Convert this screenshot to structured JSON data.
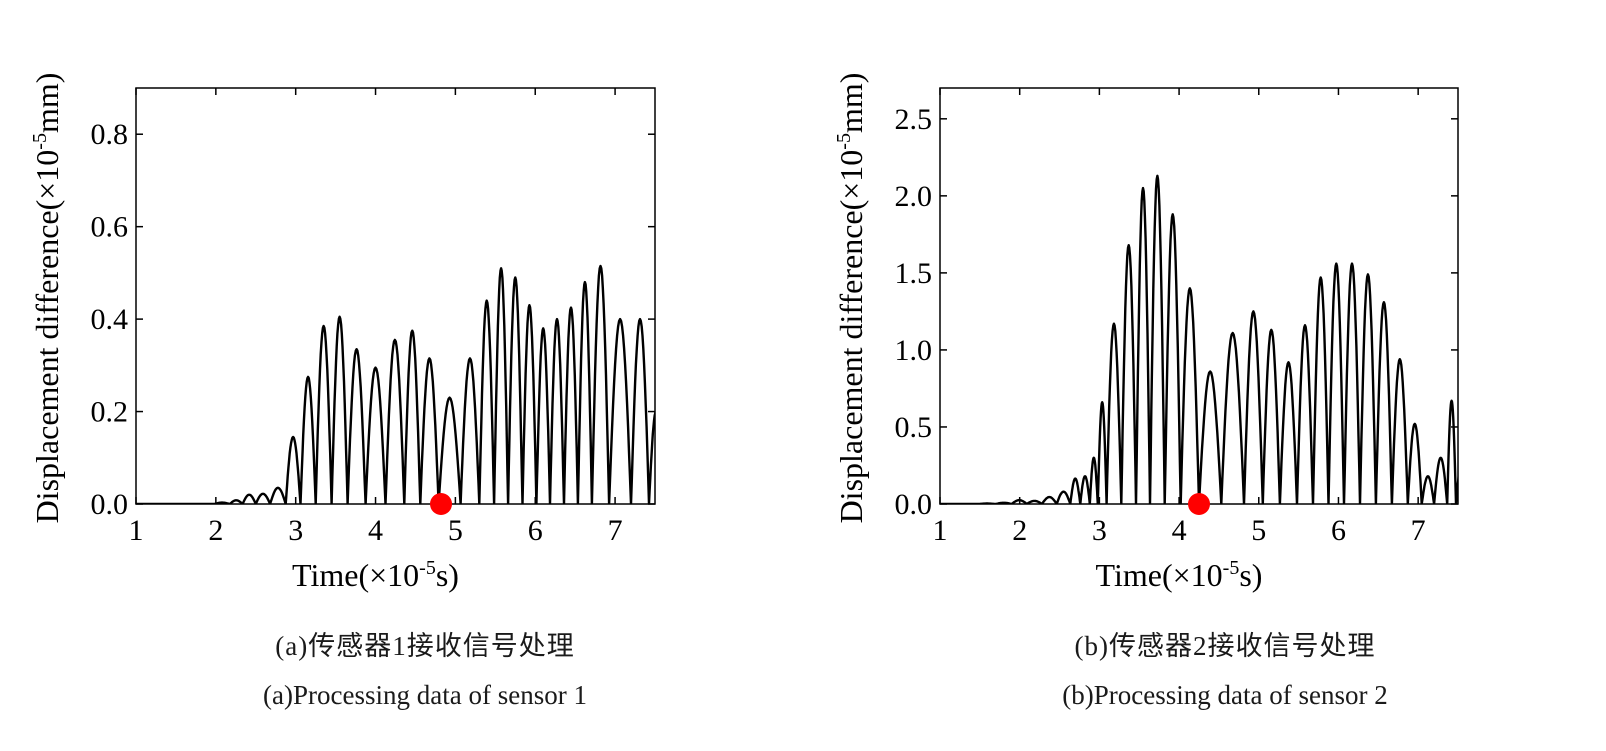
{
  "chart_data": [
    {
      "panel": "a",
      "type": "line",
      "xlabel": "Time(×10⁻⁵s)",
      "xlabel_parts": {
        "main": "Time(×10",
        "sup": "-5",
        "tail": "s)"
      },
      "ylabel_parts": {
        "main": "Displacement difference(×10",
        "sup": "-5",
        "tail": "mm)"
      },
      "xlim": [
        1,
        7.5
      ],
      "ylim": [
        0,
        0.9
      ],
      "xticks": [
        1,
        2,
        3,
        4,
        5,
        6,
        7
      ],
      "xtick_labels": [
        "1",
        "2",
        "3",
        "4",
        "5",
        "6",
        "7"
      ],
      "yticks": [
        0,
        0.2,
        0.4,
        0.6,
        0.8
      ],
      "ytick_labels": [
        "0.0",
        "0.2",
        "0.4",
        "0.6",
        "0.8"
      ],
      "grid": false,
      "legend": "none",
      "series": [
        {
          "color": "#000000",
          "peaks": [
            {
              "x": 2.1,
              "y": 0.003
            },
            {
              "x": 2.25,
              "y": 0.008
            },
            {
              "x": 2.42,
              "y": 0.02
            },
            {
              "x": 2.58,
              "y": 0.022
            },
            {
              "x": 2.78,
              "y": 0.035
            },
            {
              "x": 2.97,
              "y": 0.145
            },
            {
              "x": 3.15,
              "y": 0.275
            },
            {
              "x": 3.35,
              "y": 0.385
            },
            {
              "x": 3.55,
              "y": 0.405
            },
            {
              "x": 3.75,
              "y": 0.335
            },
            {
              "x": 4.0,
              "y": 0.295
            },
            {
              "x": 4.25,
              "y": 0.355
            },
            {
              "x": 4.47,
              "y": 0.375
            },
            {
              "x": 4.65,
              "y": 0.315
            },
            {
              "x": 4.93,
              "y": 0.23
            },
            {
              "x": 5.2,
              "y": 0.315
            },
            {
              "x": 5.4,
              "y": 0.44
            },
            {
              "x": 5.57,
              "y": 0.51
            },
            {
              "x": 5.75,
              "y": 0.49
            },
            {
              "x": 5.93,
              "y": 0.43
            },
            {
              "x": 6.1,
              "y": 0.38
            },
            {
              "x": 6.27,
              "y": 0.4
            },
            {
              "x": 6.45,
              "y": 0.425
            },
            {
              "x": 6.62,
              "y": 0.48
            },
            {
              "x": 6.8,
              "y": 0.515
            },
            {
              "x": 7.05,
              "y": 0.4
            },
            {
              "x": 7.35,
              "y": 0.4
            },
            {
              "x": 7.5,
              "y": 0.2
            }
          ]
        }
      ],
      "marker": {
        "x": 4.82,
        "y": 0,
        "color": "#ff0000"
      },
      "caption_cn": "(a)传感器1接收信号处理",
      "caption_en": "(a)Processing data of sensor 1"
    },
    {
      "panel": "b",
      "type": "line",
      "xlabel": "Time(×10⁻⁵s)",
      "xlabel_parts": {
        "main": "Time(×10",
        "sup": "-5",
        "tail": "s)"
      },
      "ylabel_parts": {
        "main": "Displacement difference(×10",
        "sup": "-5",
        "tail": "mm)"
      },
      "xlim": [
        1,
        7.5
      ],
      "ylim": [
        0,
        2.7
      ],
      "xticks": [
        1,
        2,
        3,
        4,
        5,
        6,
        7
      ],
      "xtick_labels": [
        "1",
        "2",
        "3",
        "4",
        "5",
        "6",
        "7"
      ],
      "yticks": [
        0,
        0.5,
        1.0,
        1.5,
        2.0,
        2.5
      ],
      "ytick_labels": [
        "0.0",
        "0.5",
        "1.0",
        "1.5",
        "2.0",
        "2.5"
      ],
      "grid": false,
      "legend": "none",
      "series": [
        {
          "color": "#000000",
          "peaks": [
            {
              "x": 1.6,
              "y": 0.003
            },
            {
              "x": 1.8,
              "y": 0.008
            },
            {
              "x": 2.0,
              "y": 0.025
            },
            {
              "x": 2.18,
              "y": 0.02
            },
            {
              "x": 2.38,
              "y": 0.045
            },
            {
              "x": 2.55,
              "y": 0.08
            },
            {
              "x": 2.72,
              "y": 0.165
            },
            {
              "x": 2.8,
              "y": 0.18
            },
            {
              "x": 2.96,
              "y": 0.3
            },
            {
              "x": 3.0,
              "y": 0.66
            },
            {
              "x": 3.18,
              "y": 1.17
            },
            {
              "x": 3.37,
              "y": 1.68
            },
            {
              "x": 3.55,
              "y": 2.05
            },
            {
              "x": 3.72,
              "y": 2.13
            },
            {
              "x": 3.92,
              "y": 1.88
            },
            {
              "x": 4.12,
              "y": 1.4
            },
            {
              "x": 4.38,
              "y": 0.86
            },
            {
              "x": 4.68,
              "y": 1.11
            },
            {
              "x": 4.95,
              "y": 1.25
            },
            {
              "x": 5.15,
              "y": 1.13
            },
            {
              "x": 5.38,
              "y": 0.92
            },
            {
              "x": 5.58,
              "y": 1.16
            },
            {
              "x": 5.78,
              "y": 1.47
            },
            {
              "x": 5.97,
              "y": 1.56
            },
            {
              "x": 6.17,
              "y": 1.56
            },
            {
              "x": 6.37,
              "y": 1.49
            },
            {
              "x": 6.57,
              "y": 1.31
            },
            {
              "x": 6.77,
              "y": 0.94
            },
            {
              "x": 6.97,
              "y": 0.52
            },
            {
              "x": 7.12,
              "y": 0.18
            },
            {
              "x": 7.28,
              "y": 0.3
            },
            {
              "x": 7.45,
              "y": 0.67
            },
            {
              "x": 7.5,
              "y": 0.24
            }
          ]
        }
      ],
      "marker": {
        "x": 4.25,
        "y": 0,
        "color": "#ff0000"
      },
      "caption_cn": "(b)传感器2接收信号处理",
      "caption_en": "(b)Processing data of sensor 2"
    }
  ]
}
